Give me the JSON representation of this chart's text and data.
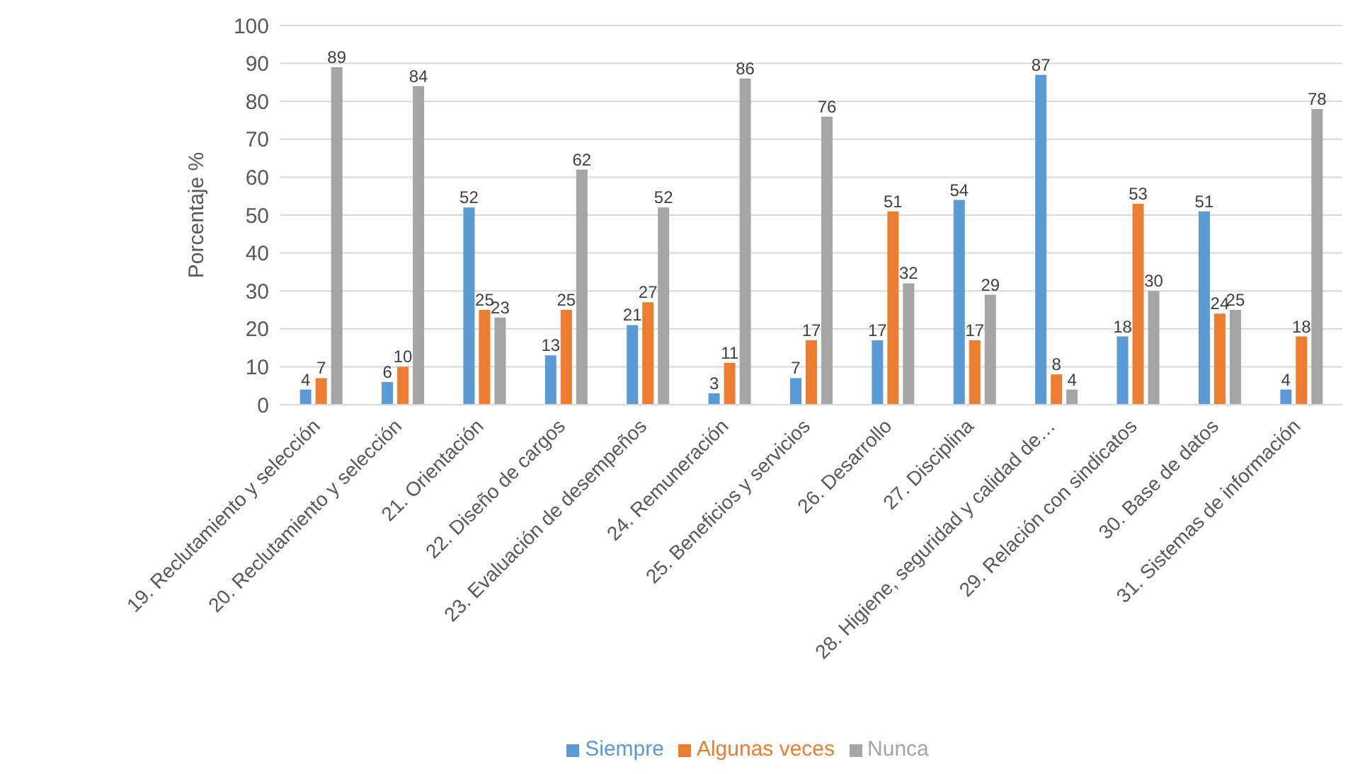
{
  "chart_data": {
    "type": "bar",
    "ylabel": "Porcentaje %",
    "categories": [
      "19. Reclutamiento y selección",
      "20. Reclutamiento y selección",
      "21. Orientación",
      "22. Diseño de cargos",
      "23. Evaluación de desempeños",
      "24. Remuneración",
      "25. Beneficios y servicios",
      "26. Desarrollo",
      "27. Disciplina",
      "28. Higiene, seguridad y calidad de…",
      "29. Relación con sindicatos",
      "30. Base de datos",
      "31. Sistemas de información"
    ],
    "series": [
      {
        "name": "Siempre",
        "color": "#5b9bd5",
        "values": [
          4,
          6,
          52,
          13,
          21,
          3,
          7,
          17,
          54,
          87,
          18,
          51,
          4
        ]
      },
      {
        "name": "Algunas veces",
        "color": "#ed7d31",
        "values": [
          7,
          10,
          25,
          25,
          27,
          11,
          17,
          51,
          17,
          8,
          53,
          24,
          18
        ]
      },
      {
        "name": "Nunca",
        "color": "#a5a5a5",
        "values": [
          89,
          84,
          23,
          62,
          52,
          86,
          76,
          32,
          29,
          4,
          30,
          25,
          78
        ]
      }
    ],
    "ylim": [
      0,
      100
    ],
    "yticks": [
      0,
      10,
      20,
      30,
      40,
      50,
      60,
      70,
      80,
      90,
      100
    ],
    "grid": "y",
    "legend": "bottom",
    "data_labels": true
  }
}
